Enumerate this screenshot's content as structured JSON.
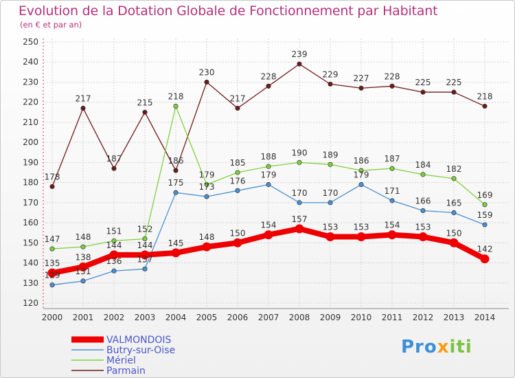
{
  "chart_data": {
    "type": "line",
    "title": "Evolution de la Dotation Globale de Fonctionnement par Habitant",
    "subtitle": "(en € et par an)",
    "xlabel": "",
    "ylabel": "",
    "ylim": [
      120,
      250
    ],
    "yticks": [
      120,
      130,
      140,
      150,
      160,
      170,
      180,
      190,
      200,
      210,
      220,
      230,
      240,
      250
    ],
    "categories": [
      "2000",
      "2001",
      "2002",
      "2003",
      "2004",
      "2005",
      "2006",
      "2007",
      "2008",
      "2009",
      "2010",
      "2011",
      "2012",
      "2013",
      "2014"
    ],
    "series": [
      {
        "name": "Parmain",
        "color": "#6e1a1a",
        "values": [
          178,
          217,
          187,
          215,
          186,
          230,
          217,
          228,
          239,
          229,
          227,
          228,
          225,
          225,
          218
        ]
      },
      {
        "name": "Mériel",
        "color": "#7ed03c",
        "values": [
          147,
          148,
          151,
          152,
          218,
          179,
          185,
          188,
          190,
          189,
          186,
          187,
          184,
          182,
          169
        ]
      },
      {
        "name": "Butry-sur-Oise",
        "color": "#4a90d0",
        "values": [
          129,
          131,
          136,
          137,
          175,
          173,
          176,
          179,
          170,
          170,
          179,
          171,
          166,
          165,
          159
        ]
      },
      {
        "name": "VALMONDOIS",
        "color": "#ee0000",
        "values": [
          135,
          138,
          144,
          144,
          145,
          148,
          150,
          154,
          157,
          153,
          153,
          154,
          153,
          150,
          142
        ]
      }
    ],
    "legend": [
      "VALMONDOIS",
      "Butry-sur-Oise",
      "Mériel",
      "Parmain"
    ],
    "legend_position": "bottom-left",
    "grid": true
  },
  "branding": {
    "logo_a": "Pro",
    "logo_b": "x",
    "logo_c": "iti"
  }
}
